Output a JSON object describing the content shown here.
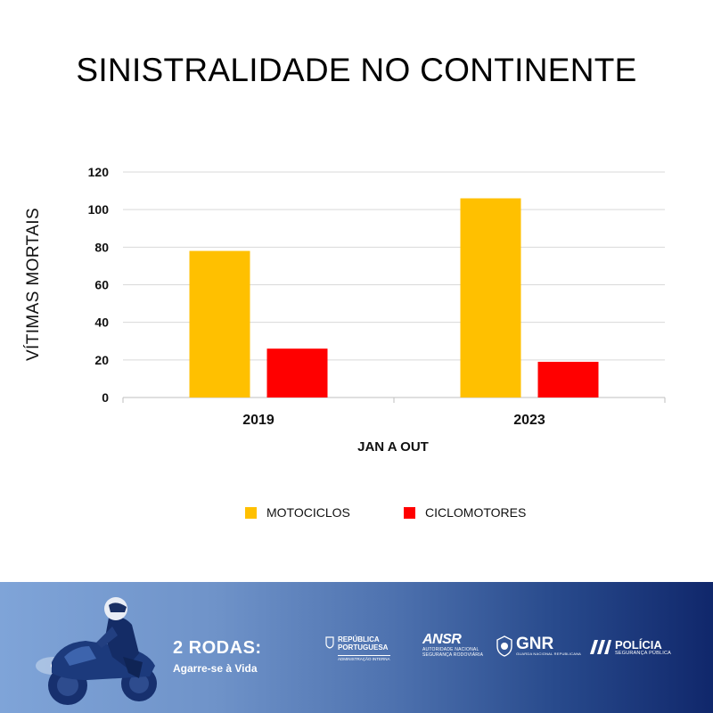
{
  "chart_data": {
    "type": "bar",
    "title": "SINISTRALIDADE NO CONTINENTE",
    "xlabel": "JAN A OUT",
    "ylabel": "VÍTIMAS MORTAIS",
    "categories": [
      "2019",
      "2023"
    ],
    "series": [
      {
        "name": "MOTOCICLOS",
        "values": [
          78,
          106
        ],
        "color": "#ffc000"
      },
      {
        "name": "CICLOMOTORES",
        "values": [
          26,
          19
        ],
        "color": "#ff0000"
      }
    ],
    "ylim": [
      0,
      120
    ],
    "yticks": [
      "0",
      "20",
      "40",
      "60",
      "80",
      "100",
      "120"
    ],
    "grid": true,
    "legend_position": "bottom"
  },
  "footer": {
    "campaign_title": "2 RODAS:",
    "campaign_subtitle": "Agarre-se à Vida",
    "logos": {
      "rp_line1": "REPÚBLICA",
      "rp_line2": "PORTUGUESA",
      "rp_line3": "ADMINISTRAÇÃO INTERNA",
      "ansr_main": "ANSR",
      "ansr_sub1": "AUTORIDADE NACIONAL",
      "ansr_sub2": "SEGURANÇA RODOVIÁRIA",
      "gnr_main": "GNR",
      "gnr_sub": "GUARDA NACIONAL REPUBLICANA",
      "psp_main": "POLÍCIA",
      "psp_sub": "SEGURANÇA PÚBLICA"
    }
  }
}
